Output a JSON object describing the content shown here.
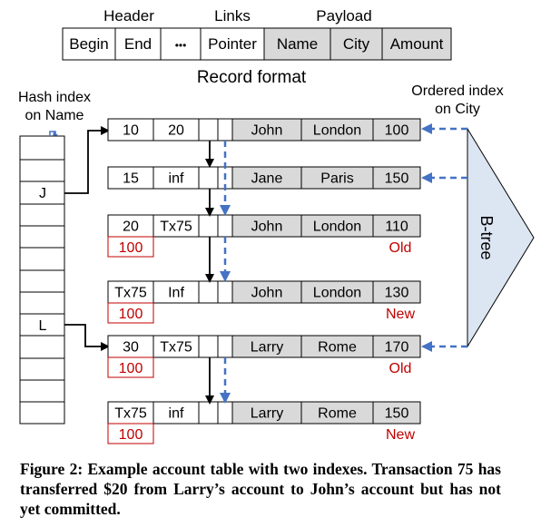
{
  "format": {
    "group_labels": [
      "Header",
      "Links",
      "Payload"
    ],
    "fields": [
      "Begin",
      "End",
      "•••",
      "Pointer",
      "Name",
      "City",
      "Amount"
    ],
    "caption": "Record format"
  },
  "hash_index_label": [
    "Hash index",
    "on Name"
  ],
  "ordered_index_label": [
    "Ordered index",
    "on City"
  ],
  "btree_label": "B-tree",
  "hash_slot_labels": {
    "j": "J",
    "l": "L"
  },
  "records": [
    {
      "begin": "10",
      "end": "20",
      "name": "John",
      "city": "London",
      "amount": "100",
      "lock": "",
      "tag": ""
    },
    {
      "begin": "15",
      "end": "inf",
      "name": "Jane",
      "city": "Paris",
      "amount": "150",
      "lock": "",
      "tag": ""
    },
    {
      "begin": "20",
      "end": "Tx75",
      "name": "John",
      "city": "London",
      "amount": "110",
      "lock": "100",
      "tag": "Old"
    },
    {
      "begin": "Tx75",
      "end": "Inf",
      "name": "John",
      "city": "London",
      "amount": "130",
      "lock": "100",
      "tag": "New"
    },
    {
      "begin": "30",
      "end": "Tx75",
      "name": "Larry",
      "city": "Rome",
      "amount": "170",
      "lock": "100",
      "tag": "Old"
    },
    {
      "begin": "Tx75",
      "end": "inf",
      "name": "Larry",
      "city": "Rome",
      "amount": "150",
      "lock": "100",
      "tag": "New"
    }
  ],
  "figure_caption": "Figure 2: Example account table with two indexes. Transaction 75 has transferred $20 from Larry’s account to John’s account but has not yet committed.",
  "colors": {
    "payload_fill": "#d9d9d9",
    "dashed_arrow": "#4472c4",
    "accent_red": "#c00000",
    "btree_fill": "#dce6f2"
  }
}
